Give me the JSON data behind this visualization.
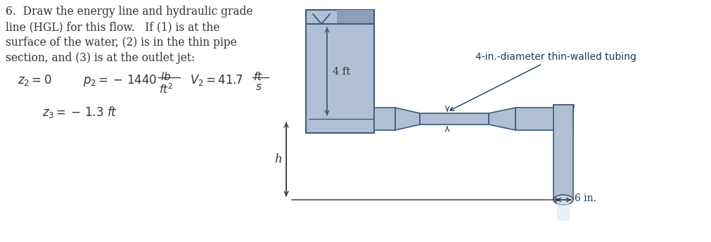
{
  "bg_color": "#ffffff",
  "text_color": "#333333",
  "pipe_fill_color": "#b0c0d4",
  "pipe_edge_color": "#3a5a80",
  "title_lines": [
    "6.  Draw the energy line and hydraulic grade",
    "line (HGL) for this flow.   If (1) is at the",
    "surface of the water, (2) is in the thin pipe",
    "section, and (3) is at the outlet jet:"
  ],
  "label_4ft": "4 ft",
  "label_h": "h",
  "label_6in": "6 in.",
  "label_tubing": "4-in.-diameter thin-walled tubing",
  "hatch_color": "#8aa0b8",
  "spray_color": "#d8e5f2"
}
